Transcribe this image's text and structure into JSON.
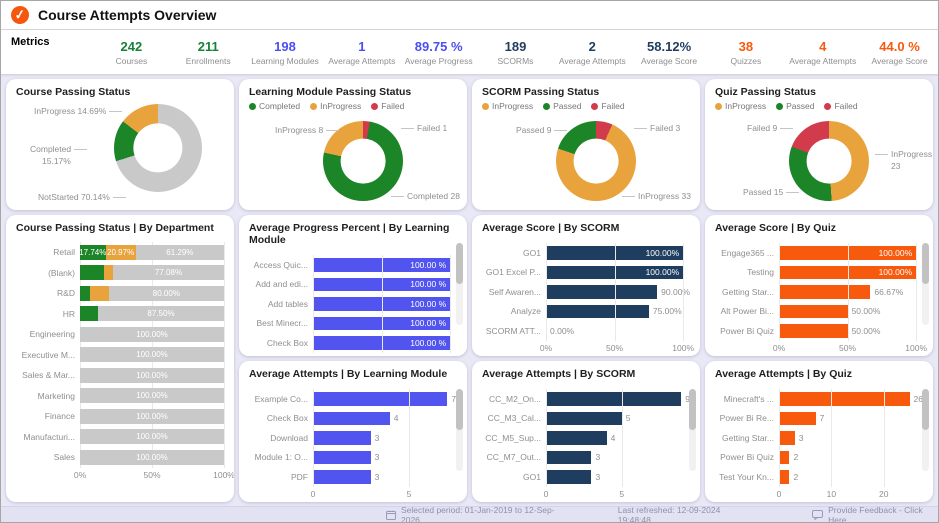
{
  "header": {
    "title": "Course Attempts Overview",
    "logo_glyph": "✓"
  },
  "colors": {
    "green": "#1B8527",
    "orange": "#E8A33C",
    "red": "#D13B4C",
    "gray": "#C9C9C9",
    "navy": "#1F3D5F",
    "indigo": "#5254F0",
    "bright_orange": "#F75A0D"
  },
  "metrics": {
    "label": "Metrics",
    "items": [
      {
        "value": "242",
        "label": "Courses",
        "color": "#188038"
      },
      {
        "value": "211",
        "label": "Enrollments",
        "color": "#188038"
      },
      {
        "value": "198",
        "label": "Learning Modules",
        "color": "#4B4FF0"
      },
      {
        "value": "1",
        "label": "Average Attempts",
        "color": "#4B4FF0"
      },
      {
        "value": "89.75 %",
        "label": "Average Progress",
        "color": "#4B4FF0"
      },
      {
        "value": "189",
        "label": "SCORMs",
        "color": "#1F3D5F"
      },
      {
        "value": "2",
        "label": "Average Attempts",
        "color": "#1F3D5F"
      },
      {
        "value": "58.12%",
        "label": "Average Score",
        "color": "#1F3D5F"
      },
      {
        "value": "38",
        "label": "Quizzes",
        "color": "#F75A0D"
      },
      {
        "value": "4",
        "label": "Average Attempts",
        "color": "#F75A0D"
      },
      {
        "value": "44.0 %",
        "label": "Average Score",
        "color": "#F75A0D"
      }
    ]
  },
  "donuts": {
    "course": {
      "title": "Course Passing Status",
      "slices": [
        {
          "label": "NotStarted",
          "pct": 70.14,
          "color": "#C9C9C9"
        },
        {
          "label": "Completed",
          "pct": 15.17,
          "color": "#1B8527"
        },
        {
          "label": "InProgress",
          "pct": 14.69,
          "color": "#E8A33C"
        }
      ],
      "labels": {
        "top": "InProgress 14.69%",
        "left1": "Completed",
        "left2": "15.17%",
        "bottom": "NotStarted 70.14%"
      }
    },
    "lm": {
      "title": "Learning Module Passing Status",
      "legend": [
        {
          "label": "Completed",
          "color": "#1B8527"
        },
        {
          "label": "InProgress",
          "color": "#E8A33C"
        },
        {
          "label": "Failed",
          "color": "#D13B4C"
        }
      ],
      "slices": [
        {
          "label": "Failed",
          "pct": 2.7,
          "color": "#D13B4C"
        },
        {
          "label": "Completed",
          "pct": 75.68,
          "color": "#1B8527"
        },
        {
          "label": "InProgress",
          "pct": 21.62,
          "color": "#E8A33C"
        }
      ],
      "labels": {
        "top_left": "InProgress 8",
        "top_right": "Failed 1",
        "bottom_right": "Completed 28"
      }
    },
    "scorm": {
      "title": "SCORM Passing Status",
      "legend": [
        {
          "label": "InProgress",
          "color": "#E8A33C"
        },
        {
          "label": "Passed",
          "color": "#1B8527"
        },
        {
          "label": "Failed",
          "color": "#D13B4C"
        }
      ],
      "slices": [
        {
          "label": "Failed",
          "pct": 6.67,
          "color": "#D13B4C"
        },
        {
          "label": "InProgress",
          "pct": 73.33,
          "color": "#E8A33C"
        },
        {
          "label": "Passed",
          "pct": 20.0,
          "color": "#1B8527"
        }
      ],
      "labels": {
        "top_left": "Passed 9",
        "top_right": "Failed 3",
        "bottom_right": "InProgress 33"
      }
    },
    "quiz": {
      "title": "Quiz Passing Status",
      "legend": [
        {
          "label": "InProgress",
          "color": "#E8A33C"
        },
        {
          "label": "Passed",
          "color": "#1B8527"
        },
        {
          "label": "Failed",
          "color": "#D13B4C"
        }
      ],
      "slices": [
        {
          "label": "InProgress",
          "pct": 48.94,
          "color": "#E8A33C"
        },
        {
          "label": "Passed",
          "pct": 31.91,
          "color": "#1B8527"
        },
        {
          "label": "Failed",
          "pct": 19.15,
          "color": "#D13B4C"
        }
      ],
      "labels": {
        "top_left": "Failed 9",
        "right1": "InProgress",
        "right2": "23",
        "bottom_left": "Passed 15"
      }
    }
  },
  "dept_chart": {
    "title": "Course Passing Status | By Department",
    "ticks": [
      {
        "v": 0,
        "label": "0%"
      },
      {
        "v": 50,
        "label": "50%"
      },
      {
        "v": 100,
        "label": "100%"
      }
    ],
    "rows": [
      {
        "label": "Retail",
        "segments": [
          {
            "pct": 17.74,
            "color": "green",
            "text": "17.74%"
          },
          {
            "pct": 20.97,
            "color": "orange",
            "text": "20.97%"
          },
          {
            "pct": 61.29,
            "color": "gray",
            "text": "61.29%"
          }
        ]
      },
      {
        "label": "(Blank)",
        "segments": [
          {
            "pct": 16.67,
            "color": "green",
            "text": ""
          },
          {
            "pct": 6.25,
            "color": "orange",
            "text": ""
          },
          {
            "pct": 77.08,
            "color": "gray",
            "text": "77.08%"
          }
        ]
      },
      {
        "label": "R&D",
        "segments": [
          {
            "pct": 6.67,
            "color": "green",
            "text": ""
          },
          {
            "pct": 13.33,
            "color": "orange",
            "text": ""
          },
          {
            "pct": 80.0,
            "color": "gray",
            "text": "80.00%"
          }
        ]
      },
      {
        "label": "HR",
        "segments": [
          {
            "pct": 12.5,
            "color": "green",
            "text": ""
          },
          {
            "pct": 87.5,
            "color": "gray",
            "text": "87.50%"
          }
        ]
      },
      {
        "label": "Engineering",
        "segments": [
          {
            "pct": 100,
            "color": "gray",
            "text": "100.00%"
          }
        ]
      },
      {
        "label": "Executive M...",
        "segments": [
          {
            "pct": 100,
            "color": "gray",
            "text": "100.00%"
          }
        ]
      },
      {
        "label": "Sales & Mar...",
        "segments": [
          {
            "pct": 100,
            "color": "gray",
            "text": "100.00%"
          }
        ]
      },
      {
        "label": "Marketing",
        "segments": [
          {
            "pct": 100,
            "color": "gray",
            "text": "100.00%"
          }
        ]
      },
      {
        "label": "Finance",
        "segments": [
          {
            "pct": 100,
            "color": "gray",
            "text": "100.00%"
          }
        ]
      },
      {
        "label": "Manufacturi...",
        "segments": [
          {
            "pct": 100,
            "color": "gray",
            "text": "100.00%"
          }
        ]
      },
      {
        "label": "Sales",
        "segments": [
          {
            "pct": 100,
            "color": "gray",
            "text": "100.00%"
          }
        ]
      }
    ]
  },
  "bar_charts": [
    {
      "id": "progress-lm",
      "title": "Average Progress Percent | By Learning Module",
      "color": "#5254F0",
      "max": 105,
      "inside_threshold": 100,
      "scrollbar": true,
      "ticks": [
        {
          "v": 0,
          "label": "0 %"
        },
        {
          "v": 50,
          "label": "50 %"
        },
        {
          "v": 100,
          "label": "100 %"
        }
      ],
      "items": [
        {
          "label": "Access Quic...",
          "value": 100,
          "text": "100.00 %"
        },
        {
          "label": "Add and edi...",
          "value": 100,
          "text": "100.00 %"
        },
        {
          "label": "Add tables",
          "value": 100,
          "text": "100.00 %"
        },
        {
          "label": "Best Minecr...",
          "value": 100,
          "text": "100.00 %"
        },
        {
          "label": "Check Box",
          "value": 100,
          "text": "100.00 %"
        }
      ]
    },
    {
      "id": "score-scorm",
      "title": "Average Score | By SCORM",
      "color": "#1F3D5F",
      "max": 105,
      "inside_threshold": 100,
      "scrollbar": false,
      "ticks": [
        {
          "v": 0,
          "label": "0%"
        },
        {
          "v": 50,
          "label": "50%"
        },
        {
          "v": 100,
          "label": "100%"
        }
      ],
      "items": [
        {
          "label": "GO1",
          "value": 100,
          "text": "100.00%"
        },
        {
          "label": "GO1 Excel P...",
          "value": 100,
          "text": "100.00%"
        },
        {
          "label": "Self Awaren...",
          "value": 90,
          "text": "90.00%"
        },
        {
          "label": "Analyze",
          "value": 75,
          "text": "75.00%"
        },
        {
          "label": "SCORM ATT...",
          "value": 0,
          "text": "0.00%"
        }
      ]
    },
    {
      "id": "score-quiz",
      "title": "Average Score | By Quiz",
      "color": "#F75A0D",
      "max": 105,
      "inside_threshold": 100,
      "scrollbar": true,
      "ticks": [
        {
          "v": 0,
          "label": "0%"
        },
        {
          "v": 50,
          "label": "50%"
        },
        {
          "v": 100,
          "label": "100%"
        }
      ],
      "items": [
        {
          "label": "Engage365 ...",
          "value": 100,
          "text": "100.00%"
        },
        {
          "label": "Testing",
          "value": 100,
          "text": "100.00%"
        },
        {
          "label": "Getting Star...",
          "value": 66.67,
          "text": "66.67%"
        },
        {
          "label": "Alt Power Bi...",
          "value": 50,
          "text": "50.00%"
        },
        {
          "label": "Power Bi Quiz",
          "value": 50,
          "text": "50.00%"
        }
      ]
    },
    {
      "id": "attempts-lm",
      "title": "Average Attempts | By Learning Module",
      "color": "#5254F0",
      "max": 7.5,
      "inside_threshold": 9999,
      "scrollbar": true,
      "ticks": [
        {
          "v": 0,
          "label": "0"
        },
        {
          "v": 5,
          "label": "5"
        }
      ],
      "items": [
        {
          "label": "Example Co...",
          "value": 7,
          "text": "7"
        },
        {
          "label": "Check Box",
          "value": 4,
          "text": "4"
        },
        {
          "label": "Download",
          "value": 3,
          "text": "3"
        },
        {
          "label": "Module 1: O...",
          "value": 3,
          "text": "3"
        },
        {
          "label": "PDF",
          "value": 3,
          "text": "3"
        }
      ]
    },
    {
      "id": "attempts-scorm",
      "title": "Average Attempts | By SCORM",
      "color": "#1F3D5F",
      "max": 9.5,
      "inside_threshold": 9999,
      "scrollbar": true,
      "ticks": [
        {
          "v": 0,
          "label": "0"
        },
        {
          "v": 5,
          "label": "5"
        }
      ],
      "items": [
        {
          "label": "CC_M2_On...",
          "value": 9,
          "text": "9"
        },
        {
          "label": "CC_M3_Cal...",
          "value": 5,
          "text": "5"
        },
        {
          "label": "CC_M5_Sup...",
          "value": 4,
          "text": "4"
        },
        {
          "label": "CC_M7_Out...",
          "value": 3,
          "text": "3"
        },
        {
          "label": "GO1",
          "value": 3,
          "text": "3"
        }
      ]
    },
    {
      "id": "attempts-quiz",
      "title": "Average Attempts | By Quiz",
      "color": "#F75A0D",
      "max": 27.5,
      "inside_threshold": 9999,
      "scrollbar": true,
      "ticks": [
        {
          "v": 0,
          "label": "0"
        },
        {
          "v": 10,
          "label": "10"
        },
        {
          "v": 20,
          "label": "20"
        }
      ],
      "items": [
        {
          "label": "Minecraft's ...",
          "value": 26,
          "text": "26"
        },
        {
          "label": "Power Bi Re...",
          "value": 7,
          "text": "7"
        },
        {
          "label": "Getting Star...",
          "value": 3,
          "text": "3"
        },
        {
          "label": "Power Bi Quiz",
          "value": 2,
          "text": "2"
        },
        {
          "label": "Test Your Kn...",
          "value": 2,
          "text": "2"
        }
      ]
    }
  ],
  "footer": {
    "selected_period": "Selected period: 01-Jan-2019 to 12-Sep-2026",
    "last_refreshed": "Last refreshed: 12-09-2024 19:48:48",
    "feedback": "Provide Feedback - Click Here"
  }
}
